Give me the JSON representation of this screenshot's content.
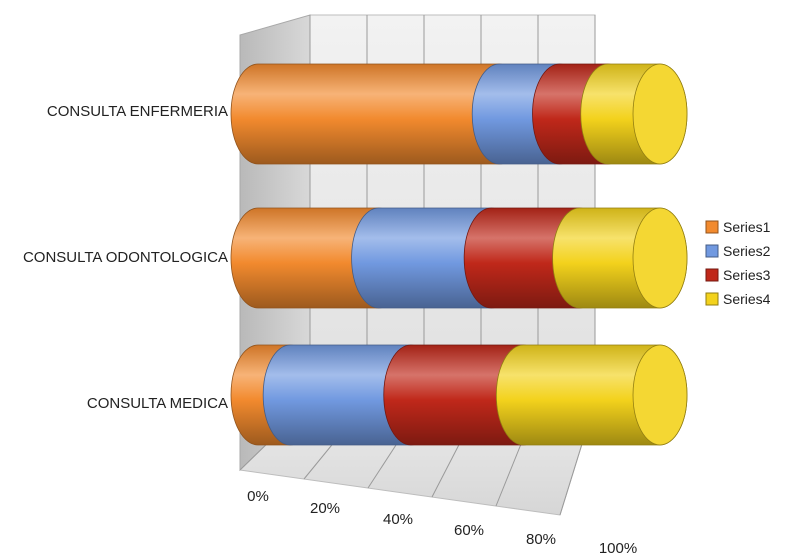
{
  "chart_data": {
    "type": "bar",
    "stacked": "percent",
    "orientation": "horizontal",
    "shape": "3d-cylinder",
    "categories": [
      "CONSULTA ENFERMERIA",
      "CONSULTA ODONTOLOGICA",
      "CONSULTA MEDICA"
    ],
    "series": [
      {
        "name": "Series1",
        "color": "#f28a2e",
        "values": [
          60,
          30,
          8
        ]
      },
      {
        "name": "Series2",
        "color": "#7199e0",
        "values": [
          15,
          28,
          30
        ]
      },
      {
        "name": "Series3",
        "color": "#c0281a",
        "values": [
          12,
          22,
          28
        ]
      },
      {
        "name": "Series4",
        "color": "#f3d21c",
        "values": [
          13,
          20,
          34
        ]
      }
    ],
    "x_ticks": [
      "0%",
      "20%",
      "40%",
      "60%",
      "80%",
      "100%"
    ],
    "xlim": [
      0,
      100
    ],
    "title": "",
    "xlabel": "",
    "ylabel": "",
    "grid": true,
    "legend_position": "right"
  }
}
